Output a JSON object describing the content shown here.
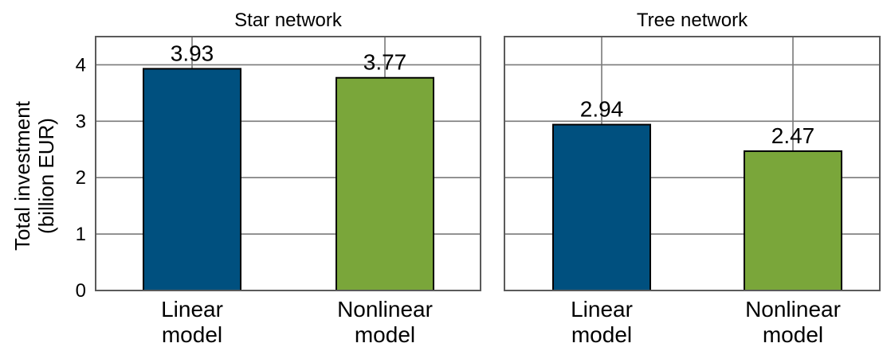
{
  "chart_data": {
    "type": "bar",
    "ylabel": [
      "Total investment",
      "(billion EUR)"
    ],
    "ylim": [
      0,
      4.5
    ],
    "yticks": [
      0,
      1,
      2,
      3,
      4
    ],
    "grid": true,
    "categories": [
      [
        "Linear",
        "model"
      ],
      [
        "Nonlinear",
        "model"
      ]
    ],
    "colors": [
      "#00507f",
      "#7aa63a"
    ],
    "panels": [
      {
        "title": "Star network",
        "values": [
          3.93,
          3.77
        ],
        "labels": [
          "3.93",
          "3.77"
        ]
      },
      {
        "title": "Tree network",
        "values": [
          2.94,
          2.47
        ],
        "labels": [
          "2.94",
          "2.47"
        ]
      }
    ]
  }
}
